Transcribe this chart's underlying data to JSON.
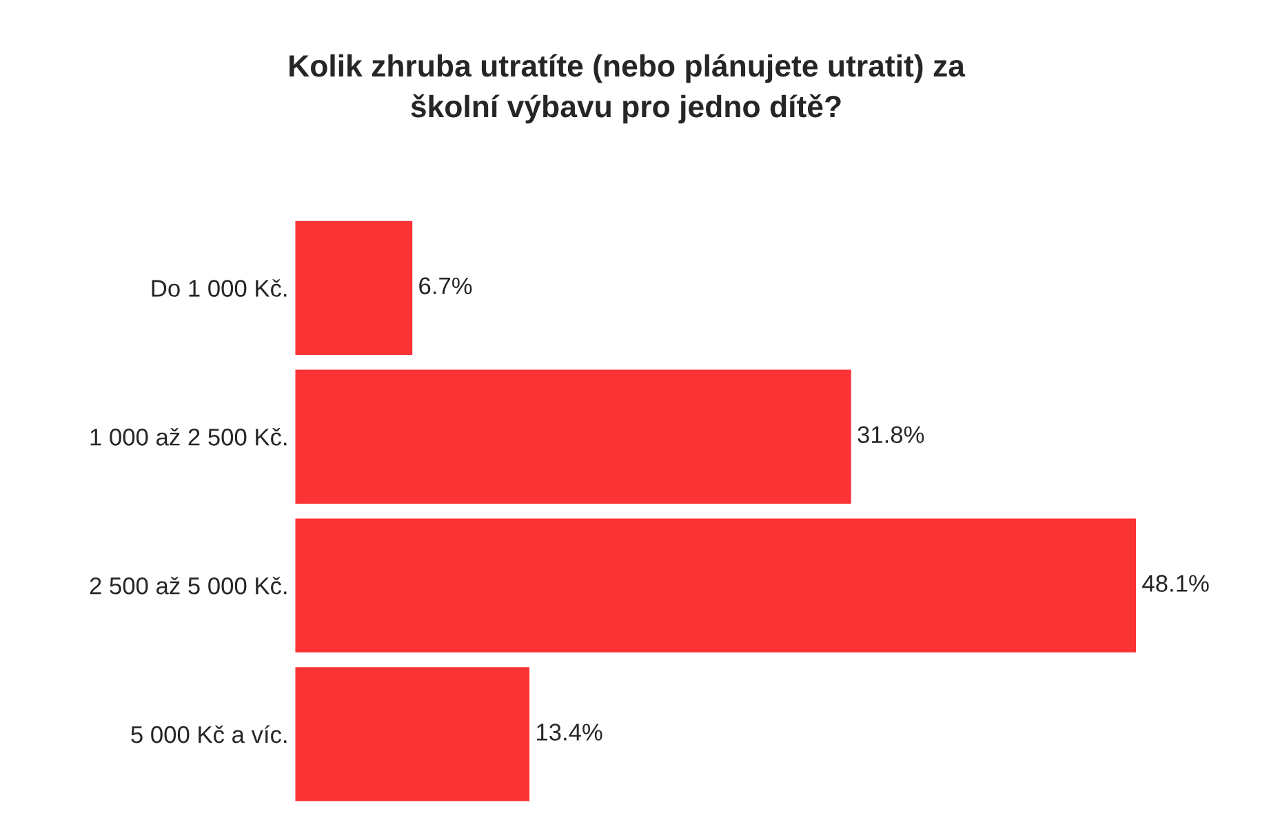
{
  "chart_data": {
    "type": "bar",
    "orientation": "horizontal",
    "title": "Kolik zhruba utratíte (nebo plánujete utratit) za\nškolní výbavu pro jedno dítě?",
    "categories": [
      "Do 1 000 Kč.",
      "1 000 až 2 500 Kč.",
      "2 500 až 5 000 Kč.",
      "5 000 Kč a víc."
    ],
    "values": [
      6.7,
      31.8,
      48.1,
      13.4
    ],
    "value_labels": [
      "6.7%",
      "31.8%",
      "48.1%",
      "13.4%"
    ],
    "color": "#fc3334",
    "grid": false,
    "legend": false,
    "tick_labels": "y"
  }
}
